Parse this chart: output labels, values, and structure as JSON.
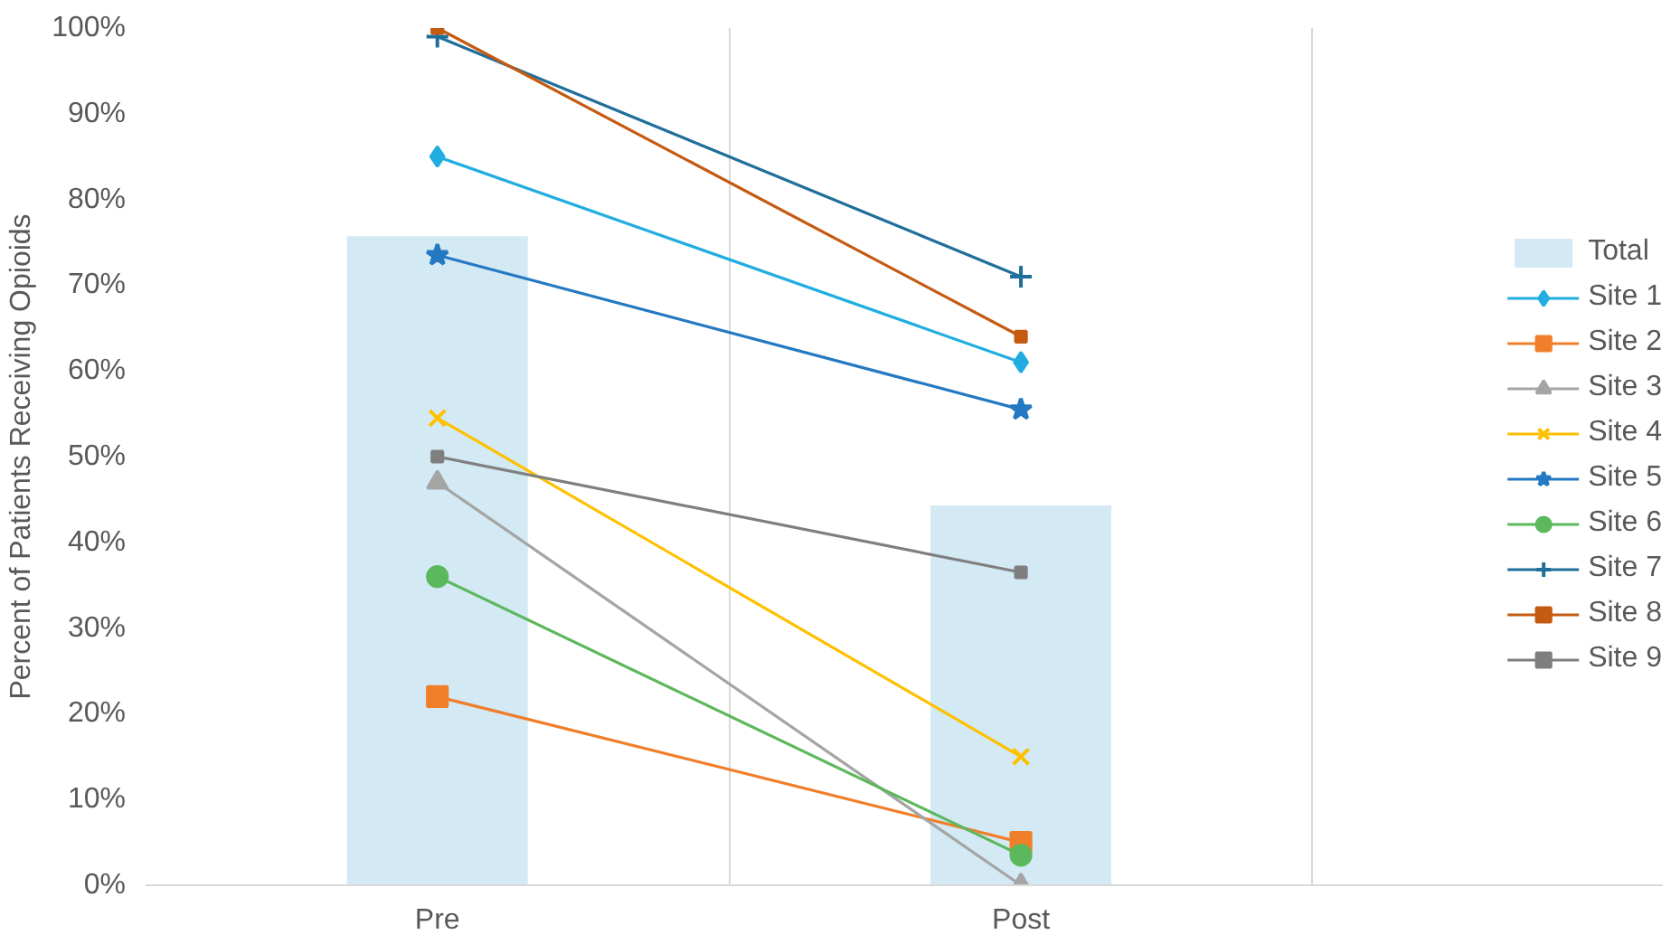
{
  "chart_data": {
    "type": "line",
    "ylabel": "Percent of Patients Receiving Opioids",
    "categories": [
      "Pre",
      "Post"
    ],
    "ylim": [
      0,
      100
    ],
    "yticks": [
      {
        "value": 0,
        "label": "0%"
      },
      {
        "value": 10,
        "label": "10%"
      },
      {
        "value": 20,
        "label": "20%"
      },
      {
        "value": 30,
        "label": "30%"
      },
      {
        "value": 40,
        "label": "40%"
      },
      {
        "value": 50,
        "label": "50%"
      },
      {
        "value": 60,
        "label": "60%"
      },
      {
        "value": 70,
        "label": "70%"
      },
      {
        "value": 80,
        "label": "80%"
      },
      {
        "value": 90,
        "label": "90%"
      },
      {
        "value": 100,
        "label": "100%"
      }
    ],
    "grid": "x",
    "legend": "right",
    "series": [
      {
        "name": "Total",
        "type": "bar",
        "color": "#d3eaf5",
        "values": [
          75.7,
          44.3
        ]
      },
      {
        "name": "Site 1",
        "color": "#21ade0",
        "marker": "diamond",
        "values": [
          85,
          61
        ]
      },
      {
        "name": "Site 2",
        "color": "#f07f2c",
        "marker": "square",
        "values": [
          22,
          5
        ]
      },
      {
        "name": "Site 3",
        "color": "#a5a5a5",
        "marker": "triangle",
        "values": [
          47,
          0
        ]
      },
      {
        "name": "Site 4",
        "color": "#ffc000",
        "marker": "x",
        "values": [
          54.5,
          15
        ]
      },
      {
        "name": "Site 5",
        "color": "#2479c2",
        "marker": "star",
        "values": [
          73.5,
          55.5
        ]
      },
      {
        "name": "Site 6",
        "color": "#5cb85c",
        "marker": "circle",
        "values": [
          36,
          3.5
        ]
      },
      {
        "name": "Site 7",
        "color": "#1f6f9a",
        "marker": "cross",
        "values": [
          99,
          71
        ]
      },
      {
        "name": "Site 8",
        "color": "#c55a11",
        "marker": "square",
        "values": [
          100,
          64
        ]
      },
      {
        "name": "Site 9",
        "color": "#7f7f7f",
        "marker": "square",
        "values": [
          50,
          36.5
        ]
      }
    ]
  }
}
